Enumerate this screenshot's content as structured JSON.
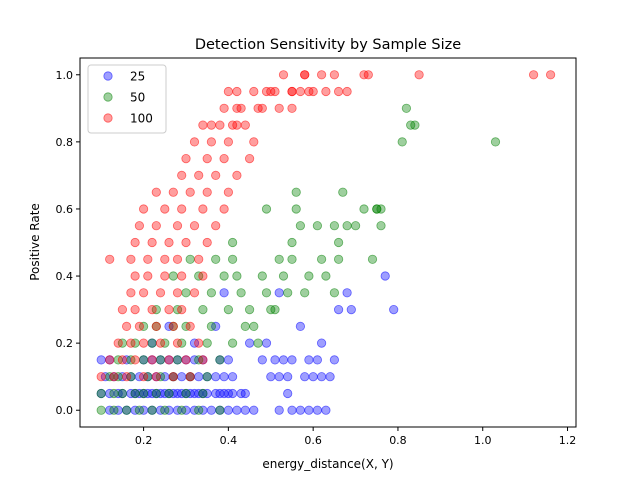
{
  "chart_data": {
    "type": "scatter",
    "title": "Detection Sensitivity by Sample Size",
    "xlabel": "energy_distance(X, Y)",
    "ylabel": "Positive Rate",
    "xlim": [
      0.05,
      1.22
    ],
    "ylim": [
      -0.05,
      1.05
    ],
    "xticks": [
      0.2,
      0.4,
      0.6,
      0.8,
      1.0,
      1.2
    ],
    "xtick_labels": [
      "0.2",
      "0.4",
      "0.6",
      "0.8",
      "1.0",
      "1.2"
    ],
    "yticks": [
      0.0,
      0.2,
      0.4,
      0.6,
      0.8,
      1.0
    ],
    "ytick_labels": [
      "0.0",
      "0.2",
      "0.4",
      "0.6",
      "0.8",
      "1.0"
    ],
    "legend_position": "top-left",
    "series": [
      {
        "name": "25",
        "color": "#0000ff",
        "x": [
          0.1,
          0.12,
          0.14,
          0.15,
          0.17,
          0.18,
          0.19,
          0.2,
          0.21,
          0.22,
          0.23,
          0.24,
          0.25,
          0.26,
          0.27,
          0.28,
          0.29,
          0.3,
          0.31,
          0.32,
          0.33,
          0.34,
          0.35,
          0.37,
          0.38,
          0.39,
          0.4,
          0.41,
          0.43,
          0.44,
          0.12,
          0.14,
          0.16,
          0.18,
          0.2,
          0.22,
          0.24,
          0.26,
          0.28,
          0.3,
          0.32,
          0.34,
          0.36,
          0.38,
          0.4,
          0.42,
          0.44,
          0.46,
          0.52,
          0.55,
          0.57,
          0.59,
          0.61,
          0.63,
          0.11,
          0.13,
          0.15,
          0.17,
          0.19,
          0.21,
          0.23,
          0.25,
          0.27,
          0.29,
          0.31,
          0.33,
          0.35,
          0.37,
          0.39,
          0.41,
          0.5,
          0.52,
          0.54,
          0.58,
          0.6,
          0.62,
          0.64,
          0.1,
          0.12,
          0.16,
          0.2,
          0.22,
          0.24,
          0.26,
          0.28,
          0.3,
          0.32,
          0.34,
          0.38,
          0.4,
          0.48,
          0.51,
          0.53,
          0.55,
          0.59,
          0.61,
          0.65,
          0.22,
          0.26,
          0.32,
          0.37,
          0.45,
          0.49,
          0.52,
          0.57,
          0.62,
          0.66,
          0.68,
          0.69,
          0.54,
          0.77,
          0.79,
          0.39
        ],
        "y": [
          0.05,
          0.05,
          0.05,
          0.05,
          0.05,
          0.05,
          0.05,
          0.05,
          0.05,
          0.05,
          0.05,
          0.05,
          0.05,
          0.05,
          0.05,
          0.05,
          0.05,
          0.05,
          0.05,
          0.05,
          0.05,
          0.05,
          0.05,
          0.05,
          0.05,
          0.05,
          0.05,
          0.05,
          0.05,
          0.05,
          0.0,
          0.0,
          0.0,
          0.0,
          0.0,
          0.0,
          0.0,
          0.0,
          0.0,
          0.0,
          0.0,
          0.0,
          0.0,
          0.0,
          0.0,
          0.0,
          0.0,
          0.0,
          0.0,
          0.0,
          0.0,
          0.0,
          0.0,
          0.0,
          0.1,
          0.1,
          0.1,
          0.1,
          0.1,
          0.1,
          0.1,
          0.1,
          0.1,
          0.1,
          0.1,
          0.1,
          0.1,
          0.1,
          0.1,
          0.1,
          0.1,
          0.1,
          0.1,
          0.1,
          0.1,
          0.1,
          0.1,
          0.15,
          0.15,
          0.15,
          0.15,
          0.15,
          0.15,
          0.15,
          0.15,
          0.15,
          0.15,
          0.15,
          0.15,
          0.15,
          0.15,
          0.15,
          0.15,
          0.15,
          0.15,
          0.15,
          0.15,
          0.2,
          0.25,
          0.2,
          0.25,
          0.2,
          0.2,
          0.35,
          0.25,
          0.2,
          0.3,
          0.35,
          0.3,
          0.05,
          0.4,
          0.3,
          0.35
        ]
      },
      {
        "name": "50",
        "color": "#008000",
        "x": [
          0.1,
          0.13,
          0.16,
          0.19,
          0.22,
          0.25,
          0.29,
          0.33,
          0.38,
          0.1,
          0.13,
          0.15,
          0.18,
          0.2,
          0.23,
          0.26,
          0.3,
          0.34,
          0.12,
          0.14,
          0.17,
          0.21,
          0.24,
          0.27,
          0.31,
          0.35,
          0.14,
          0.17,
          0.2,
          0.24,
          0.28,
          0.33,
          0.38,
          0.15,
          0.18,
          0.22,
          0.25,
          0.29,
          0.35,
          0.41,
          0.47,
          0.2,
          0.23,
          0.27,
          0.3,
          0.36,
          0.44,
          0.46,
          0.23,
          0.28,
          0.34,
          0.4,
          0.45,
          0.5,
          0.51,
          0.3,
          0.36,
          0.43,
          0.49,
          0.54,
          0.58,
          0.65,
          0.27,
          0.33,
          0.39,
          0.42,
          0.48,
          0.53,
          0.59,
          0.63,
          0.31,
          0.37,
          0.41,
          0.52,
          0.55,
          0.62,
          0.66,
          0.74,
          0.41,
          0.55,
          0.57,
          0.61,
          0.65,
          0.66,
          0.68,
          0.76,
          0.49,
          0.56,
          0.67,
          0.72,
          0.56,
          0.75,
          0.75,
          0.7,
          0.81,
          0.83,
          0.84,
          1.03,
          0.76,
          0.82
        ],
        "y": [
          0.0,
          0.0,
          0.0,
          0.0,
          0.0,
          0.0,
          0.0,
          0.0,
          0.0,
          0.05,
          0.05,
          0.05,
          0.05,
          0.05,
          0.05,
          0.05,
          0.05,
          0.05,
          0.1,
          0.1,
          0.1,
          0.1,
          0.1,
          0.1,
          0.1,
          0.1,
          0.15,
          0.15,
          0.15,
          0.15,
          0.15,
          0.15,
          0.15,
          0.2,
          0.2,
          0.2,
          0.2,
          0.2,
          0.2,
          0.2,
          0.2,
          0.25,
          0.25,
          0.25,
          0.25,
          0.25,
          0.25,
          0.25,
          0.3,
          0.3,
          0.3,
          0.3,
          0.3,
          0.3,
          0.3,
          0.35,
          0.35,
          0.35,
          0.35,
          0.35,
          0.35,
          0.35,
          0.4,
          0.4,
          0.4,
          0.4,
          0.4,
          0.4,
          0.4,
          0.4,
          0.45,
          0.45,
          0.45,
          0.45,
          0.45,
          0.45,
          0.45,
          0.45,
          0.5,
          0.5,
          0.55,
          0.55,
          0.55,
          0.5,
          0.55,
          0.55,
          0.6,
          0.6,
          0.65,
          0.6,
          0.65,
          0.6,
          0.6,
          0.55,
          0.8,
          0.85,
          0.85,
          0.8,
          0.6,
          0.9
        ]
      },
      {
        "name": "100",
        "color": "#ff0000",
        "x": [
          0.1,
          0.13,
          0.16,
          0.2,
          0.23,
          0.27,
          0.31,
          0.12,
          0.15,
          0.18,
          0.22,
          0.26,
          0.3,
          0.34,
          0.14,
          0.17,
          0.2,
          0.24,
          0.28,
          0.33,
          0.16,
          0.19,
          0.23,
          0.27,
          0.31,
          0.15,
          0.18,
          0.22,
          0.26,
          0.29,
          0.17,
          0.2,
          0.24,
          0.28,
          0.32,
          0.18,
          0.21,
          0.25,
          0.29,
          0.34,
          0.12,
          0.17,
          0.21,
          0.25,
          0.28,
          0.33,
          0.18,
          0.22,
          0.26,
          0.3,
          0.35,
          0.19,
          0.23,
          0.28,
          0.32,
          0.37,
          0.2,
          0.25,
          0.29,
          0.34,
          0.39,
          0.23,
          0.27,
          0.31,
          0.35,
          0.4,
          0.29,
          0.33,
          0.37,
          0.42,
          0.3,
          0.35,
          0.39,
          0.45,
          0.32,
          0.36,
          0.4,
          0.46,
          0.34,
          0.38,
          0.42,
          0.36,
          0.41,
          0.44,
          0.39,
          0.43,
          0.48,
          0.42,
          0.47,
          0.52,
          0.55,
          0.4,
          0.46,
          0.5,
          0.57,
          0.63,
          0.42,
          0.49,
          0.55,
          0.6,
          0.66,
          0.51,
          0.55,
          0.59,
          0.68,
          0.53,
          0.58,
          0.62,
          0.72,
          0.58,
          0.65,
          0.73,
          0.85,
          1.12,
          1.16
        ],
        "y": [
          0.1,
          0.1,
          0.1,
          0.1,
          0.1,
          0.1,
          0.1,
          0.15,
          0.15,
          0.15,
          0.15,
          0.15,
          0.15,
          0.15,
          0.2,
          0.2,
          0.2,
          0.2,
          0.2,
          0.2,
          0.25,
          0.25,
          0.25,
          0.25,
          0.25,
          0.3,
          0.3,
          0.3,
          0.3,
          0.3,
          0.35,
          0.35,
          0.35,
          0.35,
          0.35,
          0.4,
          0.4,
          0.4,
          0.4,
          0.4,
          0.45,
          0.45,
          0.45,
          0.45,
          0.45,
          0.45,
          0.5,
          0.5,
          0.5,
          0.5,
          0.5,
          0.55,
          0.55,
          0.55,
          0.55,
          0.55,
          0.6,
          0.6,
          0.6,
          0.6,
          0.6,
          0.65,
          0.65,
          0.65,
          0.65,
          0.65,
          0.7,
          0.7,
          0.7,
          0.7,
          0.75,
          0.75,
          0.75,
          0.75,
          0.8,
          0.8,
          0.8,
          0.8,
          0.85,
          0.85,
          0.85,
          0.85,
          0.85,
          0.85,
          0.9,
          0.9,
          0.9,
          0.9,
          0.9,
          0.9,
          0.9,
          0.95,
          0.95,
          0.95,
          0.95,
          0.95,
          0.95,
          0.95,
          0.95,
          0.95,
          0.95,
          0.95,
          0.95,
          0.95,
          0.95,
          1.0,
          1.0,
          1.0,
          1.0,
          1.0,
          1.0,
          1.0,
          1.0,
          1.0,
          1.0
        ]
      }
    ]
  }
}
